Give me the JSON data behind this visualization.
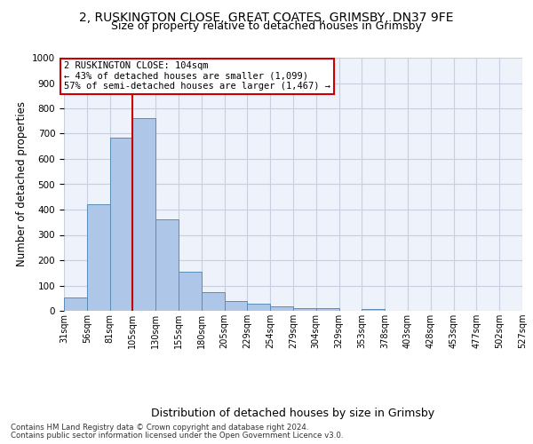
{
  "title_line1": "2, RUSKINGTON CLOSE, GREAT COATES, GRIMSBY, DN37 9FE",
  "title_line2": "Size of property relative to detached houses in Grimsby",
  "xlabel": "Distribution of detached houses by size in Grimsby",
  "ylabel": "Number of detached properties",
  "footer1": "Contains HM Land Registry data © Crown copyright and database right 2024.",
  "footer2": "Contains public sector information licensed under the Open Government Licence v3.0.",
  "bar_values": [
    52,
    422,
    685,
    762,
    362,
    153,
    75,
    40,
    28,
    18,
    12,
    10,
    0,
    8,
    0,
    0,
    0,
    0,
    0,
    0
  ],
  "bin_labels": [
    "31sqm",
    "56sqm",
    "81sqm",
    "105sqm",
    "130sqm",
    "155sqm",
    "180sqm",
    "205sqm",
    "229sqm",
    "254sqm",
    "279sqm",
    "304sqm",
    "329sqm",
    "353sqm",
    "378sqm",
    "403sqm",
    "428sqm",
    "453sqm",
    "477sqm",
    "502sqm",
    "527sqm"
  ],
  "bar_color": "#aec6e8",
  "bar_edge_color": "#5b8db8",
  "vline_color": "#cc0000",
  "vline_position": 2.5,
  "annotation_text": "2 RUSKINGTON CLOSE: 104sqm\n← 43% of detached houses are smaller (1,099)\n57% of semi-detached houses are larger (1,467) →",
  "annotation_box_color": "#cc0000",
  "ylim": [
    0,
    1000
  ],
  "yticks": [
    0,
    100,
    200,
    300,
    400,
    500,
    600,
    700,
    800,
    900,
    1000
  ],
  "grid_color": "#c8d0e0",
  "bg_color": "#eef2fa",
  "title_fontsize": 10,
  "subtitle_fontsize": 9,
  "tick_fontsize": 7,
  "ylabel_fontsize": 8.5,
  "xlabel_fontsize": 9
}
